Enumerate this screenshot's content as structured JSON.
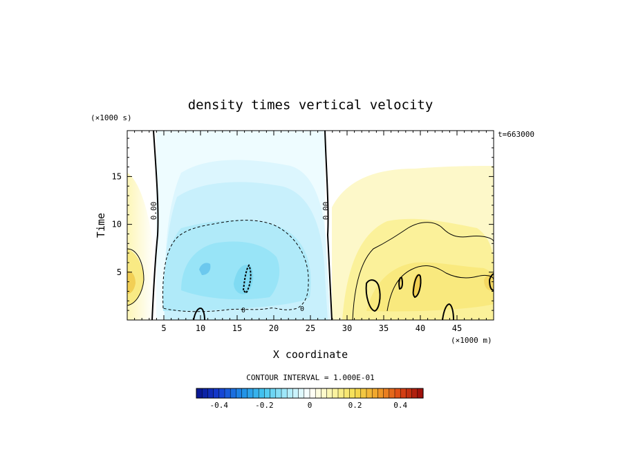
{
  "chart_data": {
    "type": "heatmap",
    "title": "density times vertical velocity",
    "xlabel": "X coordinate",
    "ylabel": "Time",
    "x_unit": "(×1000 m)",
    "y_unit": "(×1000 s)",
    "time_annotation": "t=663000",
    "xlim": [
      0,
      50
    ],
    "ylim": [
      0,
      19.8
    ],
    "x_ticks": [
      5,
      10,
      15,
      20,
      25,
      30,
      35,
      40,
      45
    ],
    "y_ticks": [
      5,
      10,
      15
    ],
    "contour_interval_label": "CONTOUR INTERVAL = 1.000E-01",
    "contour_labels": [
      "0.00",
      "0.00",
      "0",
      "0"
    ],
    "colorbar": {
      "min": -0.5,
      "max": 0.5,
      "step": 0.025,
      "tick_values": [
        -0.4,
        -0.2,
        0,
        0.2,
        0.4
      ],
      "tick_labels": [
        "-0.4",
        "-0.2",
        "0",
        "0.2",
        "0.4"
      ]
    },
    "features": [
      {
        "x": 16,
        "y": 6,
        "value": -0.2
      },
      {
        "x": 21,
        "y": 4,
        "value": -0.12
      },
      {
        "x": 10,
        "y": 5,
        "value": -0.15
      },
      {
        "x": 40,
        "y": 4,
        "value": 0.15
      },
      {
        "x": 37,
        "y": 4,
        "value": 0.12
      },
      {
        "x": 48,
        "y": 5,
        "value": 0.15
      },
      {
        "x": 1,
        "y": 5,
        "value": 0.15
      }
    ]
  }
}
